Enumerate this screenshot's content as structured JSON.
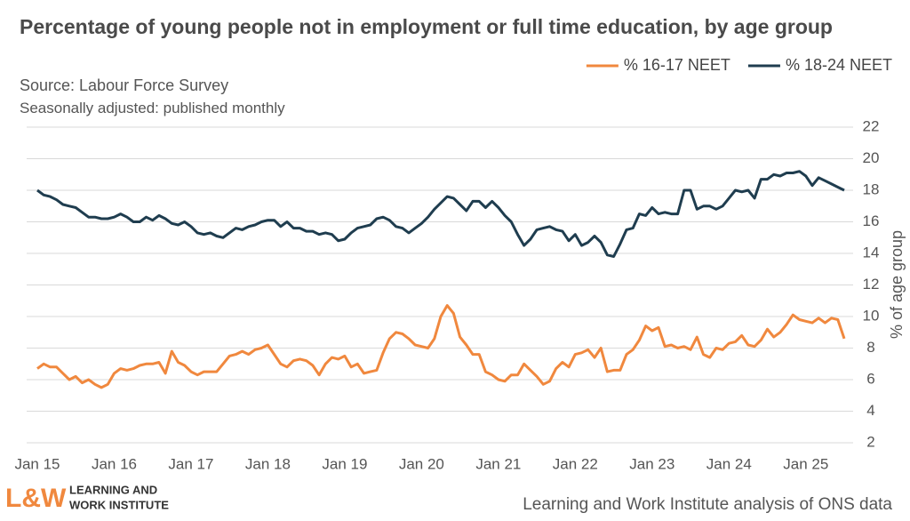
{
  "chart_data": {
    "type": "line",
    "title": "Percentage of young people not in employment or full time education, by age group",
    "subtitle": "Source: Labour Force Survey",
    "note": "Seasonally adjusted: published monthly",
    "y_label": "% of age group",
    "categories": [
      "Jan 15",
      null,
      null,
      null,
      null,
      null,
      null,
      null,
      null,
      null,
      null,
      null,
      "Jan 16",
      null,
      null,
      null,
      null,
      null,
      null,
      null,
      null,
      null,
      null,
      null,
      "Jan 17",
      null,
      null,
      null,
      null,
      null,
      null,
      null,
      null,
      null,
      null,
      null,
      "Jan 18",
      null,
      null,
      null,
      null,
      null,
      null,
      null,
      null,
      null,
      null,
      null,
      "Jan 19",
      null,
      null,
      null,
      null,
      null,
      null,
      null,
      null,
      null,
      null,
      null,
      "Jan 20",
      null,
      null,
      null,
      null,
      null,
      null,
      null,
      null,
      null,
      null,
      null,
      "Jan 21",
      null,
      null,
      null,
      null,
      null,
      null,
      null,
      null,
      null,
      null,
      null,
      "Jan 22",
      null,
      null,
      null,
      null,
      null,
      null,
      null,
      null,
      null,
      null,
      null,
      "Jan 23",
      null,
      null,
      null,
      null,
      null,
      null,
      null,
      null,
      null,
      null,
      null,
      "Jan 24",
      null,
      null,
      null,
      null,
      null,
      null,
      null,
      null,
      null,
      null,
      null,
      "Jan 25",
      null,
      null,
      null,
      null,
      null,
      null
    ],
    "series": [
      {
        "name": "% 16-17 NEET",
        "color": "#f0883e",
        "values": [
          6.7,
          7.0,
          6.8,
          6.8,
          6.4,
          6.0,
          6.2,
          5.8,
          6.0,
          5.7,
          5.5,
          5.7,
          6.4,
          6.7,
          6.6,
          6.7,
          6.9,
          7.0,
          7.0,
          7.1,
          6.4,
          7.8,
          7.1,
          6.9,
          6.5,
          6.3,
          6.5,
          6.5,
          6.5,
          7.0,
          7.5,
          7.6,
          7.8,
          7.6,
          7.9,
          8.0,
          8.2,
          7.6,
          7.0,
          6.8,
          7.2,
          7.3,
          7.2,
          6.9,
          6.3,
          7.0,
          7.4,
          7.3,
          7.5,
          6.8,
          7.0,
          6.4,
          6.5,
          6.6,
          7.7,
          8.6,
          9.0,
          8.9,
          8.6,
          8.2,
          8.1,
          8.0,
          8.6,
          10.0,
          10.7,
          10.2,
          8.7,
          8.2,
          7.6,
          7.6,
          6.5,
          6.3,
          6.0,
          5.9,
          6.3,
          6.3,
          7.0,
          6.6,
          6.2,
          5.7,
          5.9,
          6.7,
          7.1,
          6.8,
          7.6,
          7.7,
          7.9,
          7.4,
          8.0,
          6.5,
          6.6,
          6.6,
          7.6,
          7.9,
          8.5,
          9.4,
          9.1,
          9.3,
          8.1,
          8.2,
          8.0,
          8.1,
          7.9,
          8.7,
          7.6,
          7.4,
          8.0,
          7.9,
          8.3,
          8.4,
          8.8,
          8.2,
          8.1,
          8.5,
          9.2,
          8.7,
          9.0,
          9.5,
          10.1,
          9.8,
          9.7,
          9.6,
          9.9,
          9.6,
          9.9,
          9.8,
          8.6
        ]
      },
      {
        "name": "% 18-24 NEET",
        "color": "#1f3d4f",
        "values": [
          18.0,
          17.7,
          17.6,
          17.4,
          17.1,
          17.0,
          16.9,
          16.6,
          16.3,
          16.3,
          16.2,
          16.2,
          16.3,
          16.5,
          16.3,
          16.0,
          16.0,
          16.3,
          16.1,
          16.4,
          16.2,
          15.9,
          15.8,
          16.0,
          15.7,
          15.3,
          15.2,
          15.3,
          15.1,
          15.0,
          15.3,
          15.6,
          15.5,
          15.7,
          15.8,
          16.0,
          16.1,
          16.1,
          15.7,
          16.0,
          15.6,
          15.6,
          15.4,
          15.4,
          15.2,
          15.3,
          15.2,
          14.8,
          14.9,
          15.3,
          15.6,
          15.7,
          15.8,
          16.2,
          16.3,
          16.1,
          15.7,
          15.6,
          15.3,
          15.6,
          15.9,
          16.3,
          16.8,
          17.2,
          17.6,
          17.5,
          17.1,
          16.7,
          17.3,
          17.3,
          16.9,
          17.3,
          16.9,
          16.4,
          16.0,
          15.2,
          14.5,
          14.9,
          15.5,
          15.6,
          15.7,
          15.5,
          15.4,
          14.8,
          15.2,
          14.5,
          14.7,
          15.1,
          14.7,
          13.9,
          13.8,
          14.6,
          15.5,
          15.6,
          16.5,
          16.4,
          16.9,
          16.5,
          16.6,
          16.5,
          16.5,
          18.0,
          18.0,
          16.8,
          17.0,
          17.0,
          16.8,
          17.0,
          17.5,
          18.0,
          17.9,
          18.0,
          17.5,
          18.7,
          18.7,
          19.0,
          18.9,
          19.1,
          19.1,
          19.2,
          18.9,
          18.3,
          18.8,
          18.6,
          18.4,
          18.2,
          18.0
        ]
      }
    ],
    "ylim": [
      2,
      22
    ],
    "yticks": [
      2,
      4,
      6,
      8,
      10,
      12,
      14,
      16,
      18,
      20,
      22
    ],
    "grid": true,
    "legend": "top-right"
  },
  "branding": {
    "logo": "L&W",
    "name_line1": "LEARNING AND",
    "name_line2": "WORK INSTITUTE",
    "credit": "Learning and Work Institute analysis of ONS data"
  }
}
